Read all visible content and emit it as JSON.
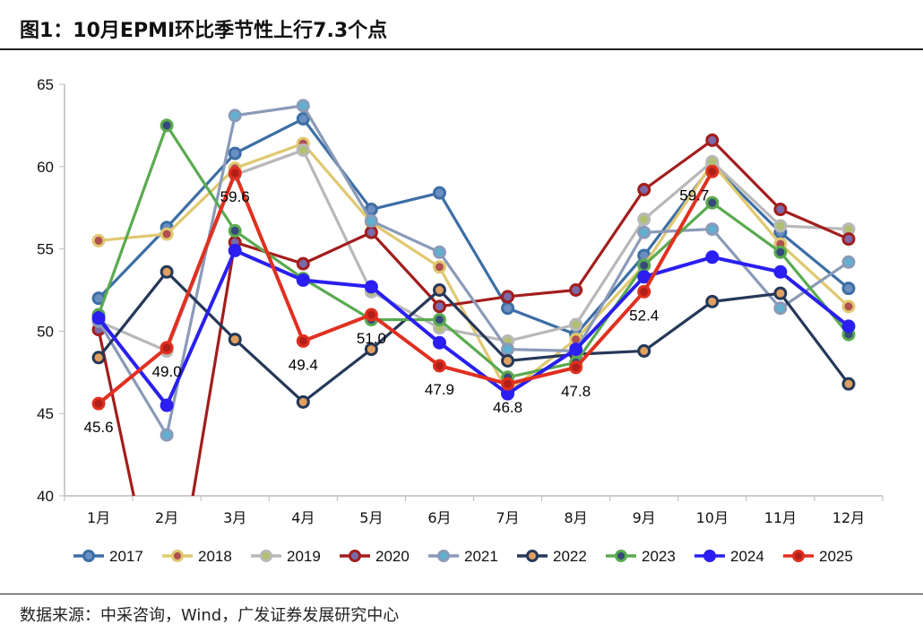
{
  "title": "图1：10月EPMI环比季节性上行7.3个点",
  "source": "数据来源：中采咨询，Wind，广发证券发展研究中心",
  "chart_data": {
    "type": "line",
    "title": "",
    "xlabel": "",
    "ylabel": "",
    "categories": [
      "1月",
      "2月",
      "3月",
      "4月",
      "5月",
      "6月",
      "7月",
      "8月",
      "9月",
      "10月",
      "11月",
      "12月"
    ],
    "ylim": [
      40,
      65
    ],
    "yticks": [
      40,
      45,
      50,
      55,
      60,
      65
    ],
    "grid": false,
    "legend_position": "bottom",
    "series": [
      {
        "name": "2017",
        "color": "#3d6ea5",
        "marker": "#6a8fc0",
        "values": [
          52.0,
          56.3,
          60.8,
          62.9,
          57.4,
          58.4,
          51.4,
          49.8,
          54.6,
          60.1,
          56.0,
          52.6
        ]
      },
      {
        "name": "2018",
        "color": "#e0c870",
        "marker": "#b05050",
        "values": [
          55.5,
          55.9,
          59.9,
          61.4,
          56.6,
          53.9,
          46.3,
          49.5,
          54.0,
          60.2,
          55.3,
          51.5
        ]
      },
      {
        "name": "2019",
        "color": "#b8b8b8",
        "marker": "#b0c070",
        "values": [
          50.6,
          48.8,
          59.5,
          61.0,
          52.4,
          50.2,
          49.4,
          50.4,
          56.8,
          60.3,
          56.4,
          56.2
        ]
      },
      {
        "name": "2020",
        "color": "#a31d1d",
        "marker": "#7a6aa8",
        "values": [
          50.1,
          30.5,
          55.4,
          54.1,
          56.0,
          51.5,
          52.1,
          52.5,
          58.6,
          61.6,
          57.4,
          55.6
        ]
      },
      {
        "name": "2021",
        "color": "#8a9ab8",
        "marker": "#60b0d0",
        "values": [
          50.6,
          43.7,
          63.1,
          63.7,
          56.7,
          54.8,
          48.9,
          48.8,
          56.0,
          56.2,
          51.4,
          54.2
        ]
      },
      {
        "name": "2022",
        "color": "#253858",
        "marker": "#e0a060",
        "values": [
          48.4,
          53.6,
          49.5,
          45.7,
          48.9,
          52.5,
          48.2,
          48.6,
          48.8,
          51.8,
          52.3,
          46.8
        ]
      },
      {
        "name": "2023",
        "color": "#5aaa50",
        "marker": "#354a7a",
        "values": [
          51.0,
          62.5,
          56.1,
          53.2,
          50.7,
          50.7,
          47.2,
          48.1,
          54.0,
          57.8,
          54.8,
          49.8
        ]
      },
      {
        "name": "2024",
        "color": "#2a1ff0",
        "marker": "#2a1ff0",
        "values": [
          50.8,
          45.5,
          54.9,
          53.1,
          52.7,
          49.3,
          46.2,
          48.9,
          53.3,
          54.5,
          53.6,
          50.3
        ]
      },
      {
        "name": "2025",
        "color": "#e03020",
        "marker": "#b02018",
        "values": [
          45.6,
          49.0,
          59.6,
          49.4,
          51.0,
          47.9,
          46.8,
          47.8,
          52.4,
          59.7,
          null,
          null
        ]
      }
    ],
    "data_labels": {
      "series": "2025",
      "labels": [
        "45.6",
        "49.0",
        "59.6",
        "49.4",
        "51.0",
        "47.9",
        "46.8",
        "47.8",
        "52.4",
        "59.7"
      ]
    }
  }
}
